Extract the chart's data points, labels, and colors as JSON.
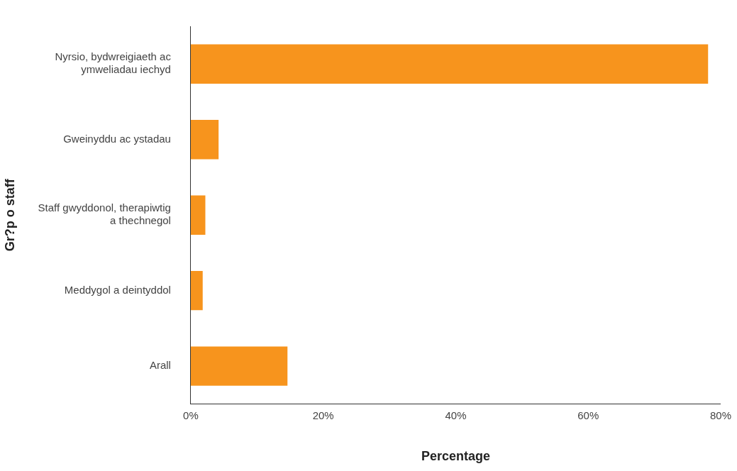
{
  "chart_data": {
    "type": "bar",
    "orientation": "horizontal",
    "xlabel": "Percentage",
    "ylabel": "Gr?p o staff",
    "categories": [
      "Nyrsio, bydwreigiaeth ac ymweliadau iechyd",
      "Gweinyddu ac ystadau",
      "Staff gwyddonol, therapiwtig a thechnegol",
      "Meddygol a deintyddol",
      "Arall"
    ],
    "values": [
      78.1,
      4.2,
      2.2,
      1.8,
      14.6
    ],
    "color": "#f7941d",
    "xlim": [
      0,
      80
    ],
    "xticks": [
      {
        "value": 0,
        "label": "0%"
      },
      {
        "value": 20,
        "label": "20%"
      },
      {
        "value": 40,
        "label": "40%"
      },
      {
        "value": 60,
        "label": "60%"
      },
      {
        "value": 80,
        "label": "80%"
      }
    ],
    "grid": false,
    "legend": false
  }
}
